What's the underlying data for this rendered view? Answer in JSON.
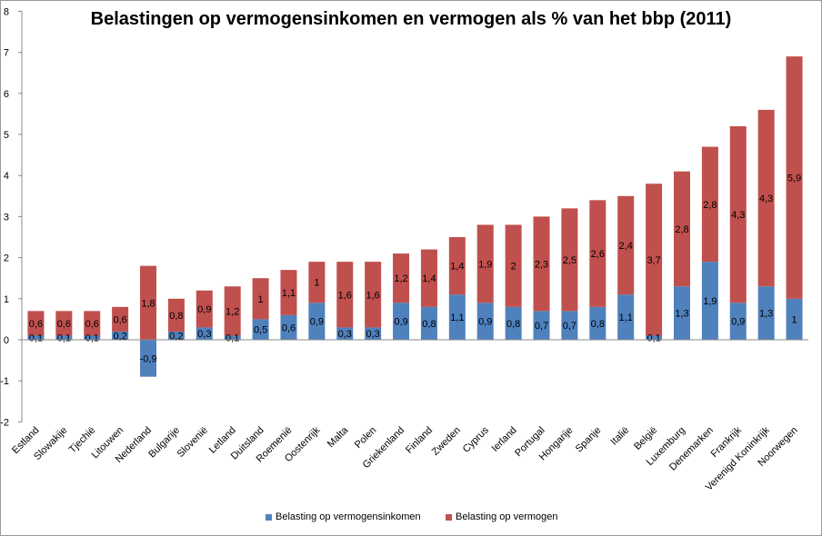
{
  "chart_data": {
    "type": "bar",
    "stacked": true,
    "title": "Belastingen op vermogensinkomen en vermogen als % van het bbp (2011)",
    "categories": [
      "Estland",
      "Slowakije",
      "Tjechië",
      "Litouwen",
      "Nederland",
      "Bulgarije",
      "Slovenië",
      "Letland",
      "Duitsland",
      "Roemenië",
      "Oostenrijk",
      "Malta",
      "Polen",
      "Griekenland",
      "Finland",
      "Zweden",
      "Cyprus",
      "Ierland",
      "Portugal",
      "Hongarije",
      "Spanje",
      "Italië",
      "België",
      "Luxemburg",
      "Denemarken",
      "Frankrijk",
      "Verenigd Koninkrijk",
      "Noorwegen"
    ],
    "series": [
      {
        "name": "Belasting op vermogensinkomen",
        "color": "#4f81bd",
        "values": [
          0.1,
          0.1,
          0.1,
          0.2,
          -0.9,
          0.2,
          0.3,
          0.1,
          0.5,
          0.6,
          0.9,
          0.3,
          0.3,
          0.9,
          0.8,
          1.1,
          0.9,
          0.8,
          0.7,
          0.7,
          0.8,
          1.1,
          0.1,
          1.3,
          1.9,
          0.9,
          1.3,
          1
        ],
        "labels": [
          "0,1",
          "0,1",
          "0,1",
          "0,2",
          "-0,9",
          "0,2",
          "0,3",
          "0,1",
          "0,5",
          "0,6",
          "0,9",
          "0,3",
          "0,3",
          "0,9",
          "0,8",
          "1,1",
          "0,9",
          "0,8",
          "0,7",
          "0,7",
          "0,8",
          "1,1",
          "0,1",
          "1,3",
          "1,9",
          "0,9",
          "1,3",
          "1"
        ]
      },
      {
        "name": "Belasting op vermogen",
        "color": "#c0504d",
        "values": [
          0.6,
          0.6,
          0.6,
          0.6,
          1.8,
          0.8,
          0.9,
          1.2,
          1,
          1.1,
          1,
          1.6,
          1.6,
          1.2,
          1.4,
          1.4,
          1.9,
          2,
          2.3,
          2.5,
          2.6,
          2.4,
          3.7,
          2.8,
          2.8,
          4.3,
          4.3,
          5.9
        ],
        "labels": [
          "0,6",
          "0,6",
          "0,6",
          "0,6",
          "1,8",
          "0,8",
          "0,9",
          "1,2",
          "1",
          "1,1",
          "1",
          "1,6",
          "1,6",
          "1,2",
          "1,4",
          "1,4",
          "1,9",
          "2",
          "2,3",
          "2,5",
          "2,6",
          "2,4",
          "3,7",
          "2,8",
          "2,8",
          "4,3",
          "4,3",
          "5,9"
        ]
      }
    ],
    "ylim": [
      -2,
      8
    ],
    "yticks": [
      -2,
      -1,
      0,
      1,
      2,
      3,
      4,
      5,
      6,
      7,
      8
    ],
    "grid": false,
    "legend_position": "bottom"
  }
}
